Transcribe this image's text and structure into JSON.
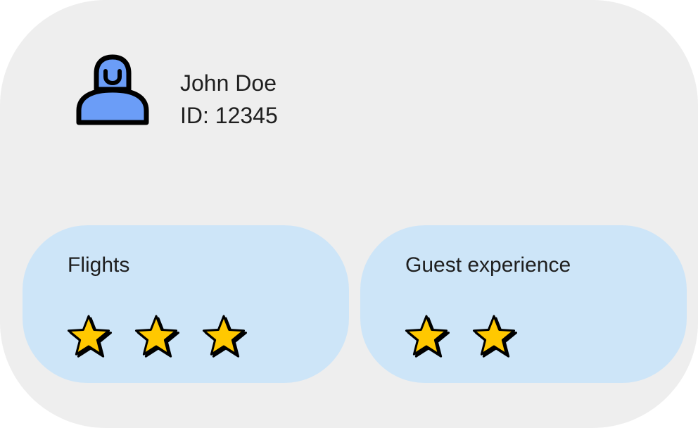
{
  "profile": {
    "avatar_icon": "user-avatar-icon",
    "name": "John Doe",
    "id_text": "ID: 12345",
    "avatar_color": "#6b9df7"
  },
  "ratings": [
    {
      "title": "Flights",
      "stars": 3,
      "max_stars_shown": 3,
      "star_icon": "star-icon"
    },
    {
      "title": "Guest experience",
      "stars": 2,
      "max_stars_shown": 2,
      "star_icon": "star-icon"
    }
  ],
  "colors": {
    "card_bg": "#eeeeee",
    "panel_bg": "#cde5f8",
    "star_fill": "#ffc800",
    "outline": "#000000"
  }
}
